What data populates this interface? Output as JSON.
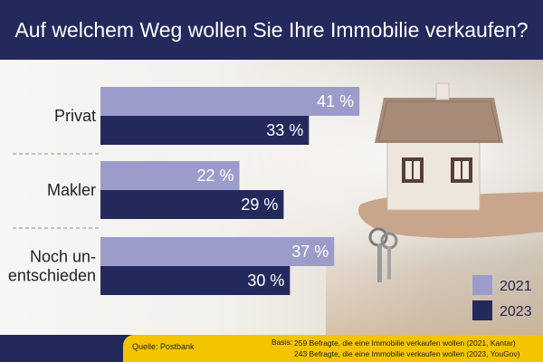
{
  "title": "Auf welchem Weg wollen Sie Ihre Immobilie verkaufen?",
  "chart_data": {
    "type": "bar",
    "orientation": "horizontal",
    "categories": [
      "Privat",
      "Makler",
      "Noch un-entschieden"
    ],
    "category_lines": [
      [
        "Privat"
      ],
      [
        "Makler"
      ],
      [
        "Noch un-",
        "entschieden"
      ]
    ],
    "series": [
      {
        "name": "2021",
        "values": [
          41,
          22,
          37
        ],
        "labels": [
          "41 %",
          "22 %",
          "37 %"
        ],
        "color": "#9c9ccb"
      },
      {
        "name": "2023",
        "values": [
          33,
          29,
          30
        ],
        "labels": [
          "33 %",
          "29 %",
          "30 %"
        ],
        "color": "#24295c"
      }
    ],
    "xlim": [
      0,
      100
    ],
    "grid": false,
    "legend_position": "bottom-right",
    "title": "Auf welchem Weg wollen Sie Ihre Immobilie verkaufen?"
  },
  "footer": {
    "source": "Quelle: Postbank",
    "basis_key": "Basis:",
    "basis_line1": "259 Befragte, die eine Immobilie verkaufen wollen (2021, Kantar)",
    "basis_line2": "243 Befragte, die eine Immobilie verkaufen wollen (2023, YouGov)"
  },
  "colors": {
    "navy": "#24295c",
    "lavender": "#9c9ccb",
    "yellow": "#f5c400"
  },
  "decor": {
    "photo": "hand-holding-house-model-with-keys"
  }
}
